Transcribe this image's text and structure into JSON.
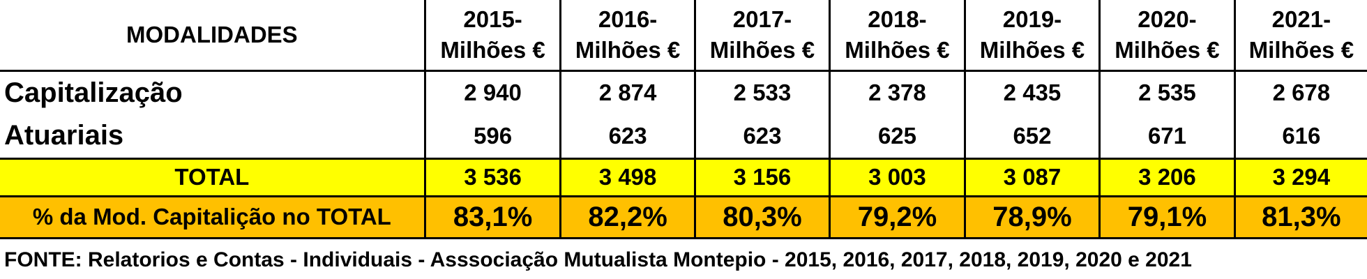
{
  "table": {
    "header_label": "MODALIDADES",
    "years": [
      {
        "year": "2015-",
        "unit": "Milhões €"
      },
      {
        "year": "2016-",
        "unit": "Milhões €"
      },
      {
        "year": "2017-",
        "unit": "Milhões €"
      },
      {
        "year": "2018-",
        "unit": "Milhões €"
      },
      {
        "year": "2019-",
        "unit": "Milhões €"
      },
      {
        "year": "2020-",
        "unit": "Milhões €"
      },
      {
        "year": "2021-",
        "unit": "Milhões €"
      }
    ],
    "rows": [
      {
        "label": "Capitalização",
        "values": [
          "2 940",
          "2 874",
          "2 533",
          "2 378",
          "2 435",
          "2 535",
          "2 678"
        ]
      },
      {
        "label": "Atuariais",
        "values": [
          "596",
          "623",
          "623",
          "625",
          "652",
          "671",
          "616"
        ]
      }
    ],
    "total": {
      "label": "TOTAL",
      "values": [
        "3 536",
        "3 498",
        "3 156",
        "3 003",
        "3 087",
        "3 206",
        "3 294"
      ]
    },
    "percent": {
      "label": "% da Mod. Capitalição no TOTAL",
      "values": [
        "83,1%",
        "82,2%",
        "80,3%",
        "79,2%",
        "78,9%",
        "79,1%",
        "81,3%"
      ]
    }
  },
  "colors": {
    "total_row_bg": "#ffff00",
    "percent_row_bg": "#ffc000"
  },
  "source": "FONTE: Relatorios e Contas - Individuais - Asssociação Mutualista Montepio - 2015, 2016, 2017, 2018, 2019, 2020 e 2021"
}
